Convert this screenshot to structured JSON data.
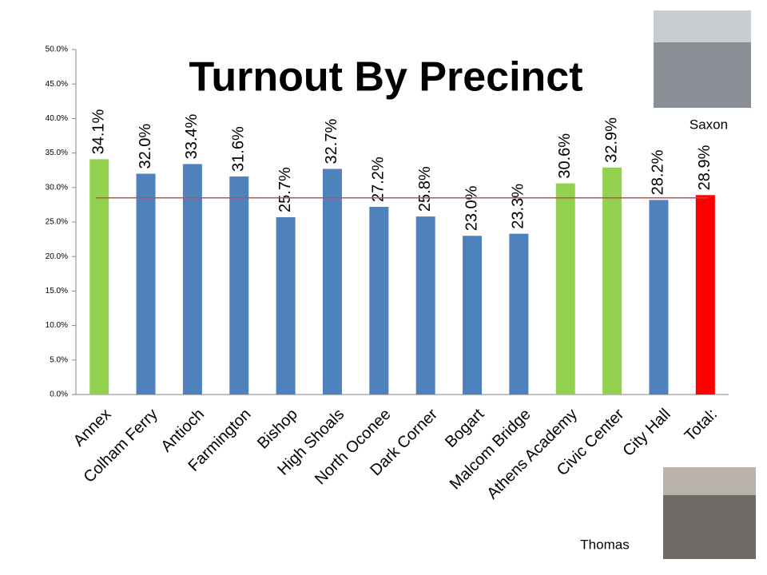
{
  "chart_data": {
    "type": "bar",
    "title": "Turnout By Precinct",
    "categories": [
      "Annex",
      "Colham Ferry",
      "Antioch",
      "Farmington",
      "Bishop",
      "High Shoals",
      "North Oconee",
      "Dark Corner",
      "Bogart",
      "Malcom Bridge",
      "Athens Academy",
      "Civic Center",
      "City Hall",
      "Total:"
    ],
    "values": [
      34.1,
      32.0,
      33.4,
      31.6,
      25.7,
      32.7,
      27.2,
      25.8,
      23.0,
      23.3,
      30.6,
      32.9,
      28.2,
      28.9
    ],
    "value_labels": [
      "34.1%",
      "32.0%",
      "33.4%",
      "31.6%",
      "25.7%",
      "32.7%",
      "27.2%",
      "25.8%",
      "23.0%",
      "23.3%",
      "30.6%",
      "32.9%",
      "28.2%",
      "28.9%"
    ],
    "colors": [
      "#92d050",
      "#4f81bd",
      "#4f81bd",
      "#4f81bd",
      "#4f81bd",
      "#4f81bd",
      "#4f81bd",
      "#4f81bd",
      "#4f81bd",
      "#4f81bd",
      "#92d050",
      "#92d050",
      "#4f81bd",
      "#ff0000"
    ],
    "reference_line": 28.5,
    "reference_color": "#c0504d",
    "ylim": [
      0,
      50
    ],
    "yticks": [
      {
        "value": 0,
        "label": "0.0%"
      },
      {
        "value": 5,
        "label": "5.0%"
      },
      {
        "value": 10,
        "label": "10.0%"
      },
      {
        "value": 15,
        "label": "15.0%"
      },
      {
        "value": 20,
        "label": "20.0%"
      },
      {
        "value": 25,
        "label": "25.0%"
      },
      {
        "value": 30,
        "label": "30.0%"
      },
      {
        "value": 35,
        "label": "35.0%"
      },
      {
        "value": 40,
        "label": "40.0%"
      },
      {
        "value": 45,
        "label": "45.0%"
      },
      {
        "value": 50,
        "label": "50.0%"
      }
    ],
    "grid": false,
    "captions": [
      "Saxon",
      "Thomas"
    ]
  }
}
